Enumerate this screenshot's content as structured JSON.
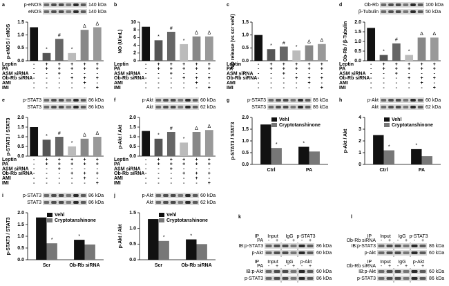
{
  "chart_data": [
    {
      "type": "bar",
      "label": "a",
      "ylabel": "p-eNOS / eNOS",
      "blots": [
        {
          "name": "p-eNOS",
          "kda": "140 kDa"
        },
        {
          "name": "eNOS",
          "kda": "140 kDa"
        }
      ],
      "values": [
        1.3,
        0.3,
        0.85,
        0.3,
        1.2,
        1.3
      ],
      "colors": [
        "#111111",
        "#555555",
        "#666666",
        "#bbbbbb",
        "#888888",
        "#999999"
      ],
      "annotations": [
        null,
        "*",
        "#",
        "*",
        "Δ",
        "Δ"
      ],
      "ylim": [
        0,
        1.5
      ],
      "yticks": [
        {
          "value": 0,
          "label": "0.0"
        },
        {
          "value": 0.5,
          "label": "0.5"
        },
        {
          "value": 1,
          "label": "1.0"
        },
        {
          "value": 1.5,
          "label": "1.5"
        }
      ],
      "treatments": [
        {
          "name": "Leptin",
          "signs": [
            "-",
            "+",
            "+",
            "+",
            "+",
            "+"
          ]
        },
        {
          "name": "PA",
          "signs": [
            "-",
            "+",
            "+",
            "+",
            "+",
            "+"
          ]
        },
        {
          "name": "ASM siRNA",
          "signs": [
            "-",
            "-",
            "+",
            "-",
            "-",
            "-"
          ]
        },
        {
          "name": "Ob-Rb siRNA",
          "signs": [
            "-",
            "-",
            "-",
            "+",
            "+",
            "+"
          ]
        },
        {
          "name": "AMI",
          "signs": [
            "-",
            "-",
            "-",
            "-",
            "+",
            "-"
          ]
        },
        {
          "name": "IMI",
          "signs": [
            "-",
            "-",
            "-",
            "-",
            "-",
            "+"
          ]
        }
      ]
    },
    {
      "type": "bar",
      "label": "b",
      "ylabel": "NO (U/mL)",
      "values": [
        8.8,
        5.3,
        7.5,
        4.3,
        6.3,
        6.3
      ],
      "colors": [
        "#111111",
        "#555555",
        "#666666",
        "#bbbbbb",
        "#888888",
        "#999999"
      ],
      "annotations": [
        null,
        "*",
        "#",
        "*",
        "Δ",
        "Δ"
      ],
      "ylim": [
        0,
        10
      ],
      "yticks": [
        0,
        2,
        4,
        6,
        8,
        10
      ],
      "treatments": [
        {
          "name": "Leptin",
          "signs": [
            "-",
            "+",
            "+",
            "+",
            "+",
            "+"
          ]
        },
        {
          "name": "PA",
          "signs": [
            "-",
            "+",
            "+",
            "+",
            "+",
            "+"
          ]
        },
        {
          "name": "ASM siRNA",
          "signs": [
            "-",
            "-",
            "+",
            "-",
            "-",
            "-"
          ]
        },
        {
          "name": "Ob-Rb siRNA",
          "signs": [
            "-",
            "-",
            "-",
            "+",
            "+",
            "+"
          ]
        },
        {
          "name": "AMI",
          "signs": [
            "-",
            "-",
            "-",
            "-",
            "+",
            "-"
          ]
        },
        {
          "name": "IMI",
          "signs": [
            "-",
            "-",
            "-",
            "-",
            "-",
            "+"
          ]
        }
      ]
    },
    {
      "type": "bar",
      "label": "c",
      "ylabel": "NO release (vs scr vehl)",
      "values": [
        1.0,
        0.45,
        0.55,
        0.4,
        0.6,
        0.65
      ],
      "colors": [
        "#111111",
        "#555555",
        "#666666",
        "#bbbbbb",
        "#888888",
        "#999999"
      ],
      "annotations": [
        null,
        "*",
        "#",
        "*",
        "Δ",
        "Δ"
      ],
      "ylim": [
        0,
        1.5
      ],
      "yticks": [
        {
          "value": 0,
          "label": "0.0"
        },
        {
          "value": 0.5,
          "label": "0.5"
        },
        {
          "value": 1,
          "label": "1.0"
        },
        {
          "value": 1.5,
          "label": "1.5"
        }
      ],
      "treatments": [
        {
          "name": "Leptin",
          "signs": [
            "-",
            "+",
            "+",
            "+",
            "+",
            "+"
          ]
        },
        {
          "name": "PA",
          "signs": [
            "-",
            "+",
            "+",
            "+",
            "+",
            "+"
          ]
        },
        {
          "name": "ASM siRNA",
          "signs": [
            "-",
            "-",
            "+",
            "-",
            "-",
            "-"
          ]
        },
        {
          "name": "Ob-Rb siRNA",
          "signs": [
            "-",
            "-",
            "-",
            "+",
            "+",
            "+"
          ]
        },
        {
          "name": "AMI",
          "signs": [
            "-",
            "-",
            "-",
            "-",
            "+",
            "-"
          ]
        },
        {
          "name": "IMI",
          "signs": [
            "-",
            "-",
            "-",
            "-",
            "-",
            "+"
          ]
        }
      ]
    },
    {
      "type": "bar",
      "label": "d",
      "ylabel": "Ob-Rb / β-Tubulin",
      "blots": [
        {
          "name": "Ob-Rb",
          "kda": "100 kDa"
        },
        {
          "name": "β-Tubulin",
          "kda": "50 kDa"
        }
      ],
      "values": [
        1.7,
        0.3,
        0.9,
        0.3,
        1.2,
        1.2
      ],
      "colors": [
        "#111111",
        "#555555",
        "#666666",
        "#bbbbbb",
        "#888888",
        "#999999"
      ],
      "annotations": [
        null,
        "*",
        "#",
        "*",
        "Δ",
        "Δ"
      ],
      "ylim": [
        0,
        2
      ],
      "yticks": [
        {
          "value": 0,
          "label": "0.0"
        },
        {
          "value": 0.5,
          "label": "0.5"
        },
        {
          "value": 1,
          "label": "1.0"
        },
        {
          "value": 1.5,
          "label": "1.5"
        },
        {
          "value": 2,
          "label": "2.0"
        }
      ],
      "treatments": [
        {
          "name": "Leptin",
          "signs": [
            "-",
            "+",
            "+",
            "+",
            "+",
            "+"
          ]
        },
        {
          "name": "PA",
          "signs": [
            "-",
            "+",
            "+",
            "+",
            "+",
            "+"
          ]
        },
        {
          "name": "ASM siRNA",
          "signs": [
            "-",
            "-",
            "+",
            "-",
            "-",
            "-"
          ]
        },
        {
          "name": "Ob-Rb siRNA",
          "signs": [
            "-",
            "-",
            "-",
            "+",
            "+",
            "+"
          ]
        },
        {
          "name": "AMI",
          "signs": [
            "-",
            "-",
            "-",
            "-",
            "+",
            "-"
          ]
        },
        {
          "name": "IMI",
          "signs": [
            "-",
            "-",
            "-",
            "-",
            "-",
            "+"
          ]
        }
      ]
    },
    {
      "type": "bar",
      "label": "e",
      "ylabel": "p-STAT3 / STAT3",
      "blots": [
        {
          "name": "p-STAT3",
          "kda": "86 kDa"
        },
        {
          "name": "STAT3",
          "kda": "86 kDa"
        }
      ],
      "values": [
        1.5,
        0.85,
        1.0,
        0.5,
        0.9,
        1.0
      ],
      "colors": [
        "#111111",
        "#555555",
        "#666666",
        "#bbbbbb",
        "#888888",
        "#999999"
      ],
      "annotations": [
        null,
        "*",
        "#",
        "*",
        "Δ",
        "Δ"
      ],
      "ylim": [
        0,
        2
      ],
      "yticks": [
        {
          "value": 0,
          "label": "0.0"
        },
        {
          "value": 0.5,
          "label": "0.5"
        },
        {
          "value": 1,
          "label": "1.0"
        },
        {
          "value": 1.5,
          "label": "1.5"
        },
        {
          "value": 2,
          "label": "2.0"
        }
      ],
      "treatments": [
        {
          "name": "Leptin",
          "signs": [
            "-",
            "+",
            "+",
            "+",
            "+",
            "+"
          ]
        },
        {
          "name": "PA",
          "signs": [
            "-",
            "+",
            "+",
            "+",
            "+",
            "+"
          ]
        },
        {
          "name": "ASM siRNA",
          "signs": [
            "-",
            "-",
            "+",
            "-",
            "-",
            "-"
          ]
        },
        {
          "name": "Ob-Rb siRNA",
          "signs": [
            "-",
            "-",
            "-",
            "+",
            "+",
            "+"
          ]
        },
        {
          "name": "AMI",
          "signs": [
            "-",
            "-",
            "-",
            "-",
            "+",
            "-"
          ]
        },
        {
          "name": "IMI",
          "signs": [
            "-",
            "-",
            "-",
            "-",
            "-",
            "+"
          ]
        }
      ]
    },
    {
      "type": "bar",
      "label": "f",
      "ylabel": "p-Akt / Akt",
      "blots": [
        {
          "name": "p-Akt",
          "kda": "60 kDa"
        },
        {
          "name": "Akt",
          "kda": "62 kDa"
        }
      ],
      "values": [
        1.3,
        0.9,
        1.25,
        0.7,
        1.25,
        1.35
      ],
      "colors": [
        "#111111",
        "#555555",
        "#666666",
        "#bbbbbb",
        "#888888",
        "#999999"
      ],
      "annotations": [
        null,
        "*",
        "#",
        "*",
        "Δ",
        "Δ"
      ],
      "ylim": [
        0,
        2
      ],
      "yticks": [
        {
          "value": 0,
          "label": "0.0"
        },
        {
          "value": 0.5,
          "label": "0.5"
        },
        {
          "value": 1,
          "label": "1.0"
        },
        {
          "value": 1.5,
          "label": "1.5"
        },
        {
          "value": 2,
          "label": "2.0"
        }
      ],
      "treatments": [
        {
          "name": "Leptin",
          "signs": [
            "-",
            "+",
            "+",
            "+",
            "+",
            "+"
          ]
        },
        {
          "name": "PA",
          "signs": [
            "-",
            "+",
            "+",
            "+",
            "+",
            "+"
          ]
        },
        {
          "name": "ASM siRNA",
          "signs": [
            "-",
            "-",
            "+",
            "-",
            "-",
            "-"
          ]
        },
        {
          "name": "Ob-Rb siRNA",
          "signs": [
            "-",
            "-",
            "-",
            "+",
            "+",
            "+"
          ]
        },
        {
          "name": "AMI",
          "signs": [
            "-",
            "-",
            "-",
            "-",
            "+",
            "-"
          ]
        },
        {
          "name": "IMI",
          "signs": [
            "-",
            "-",
            "-",
            "-",
            "-",
            "+"
          ]
        }
      ]
    },
    {
      "type": "bar",
      "label": "g",
      "ylabel": "p-STAT3 / STAT3",
      "blots": [
        {
          "name": "p-STAT3",
          "kda": "86 kDa"
        },
        {
          "name": "STAT3",
          "kda": "86 kDa"
        }
      ],
      "categories": [
        "Ctrl",
        "PA"
      ],
      "series": [
        {
          "name": "Vehl",
          "color": "#111111",
          "values": [
            1.7,
            0.75
          ],
          "annotations": [
            null,
            "*"
          ]
        },
        {
          "name": "Cryptotanshinone",
          "color": "#777777",
          "values": [
            0.7,
            0.55
          ],
          "annotations": [
            "*",
            null
          ]
        }
      ],
      "ylim": [
        0,
        2
      ],
      "yticks": [
        {
          "value": 0,
          "label": "0.0"
        },
        {
          "value": 0.5,
          "label": "0.5"
        },
        {
          "value": 1,
          "label": "1.0"
        },
        {
          "value": 1.5,
          "label": "1.5"
        },
        {
          "value": 2,
          "label": "2.0"
        }
      ]
    },
    {
      "type": "bar",
      "label": "h",
      "ylabel": "p-Akt / Akt",
      "blots": [
        {
          "name": "p-Akt",
          "kda": "60 kDa"
        },
        {
          "name": "Akt",
          "kda": "62 kDa"
        }
      ],
      "categories": [
        "Ctrl",
        "PA"
      ],
      "series": [
        {
          "name": "Vehl",
          "color": "#111111",
          "values": [
            2.5,
            1.3
          ],
          "annotations": [
            null,
            "*"
          ]
        },
        {
          "name": "Cryptotanshinone",
          "color": "#777777",
          "values": [
            1.2,
            0.7
          ],
          "annotations": [
            "*",
            null
          ]
        }
      ],
      "ylim": [
        0,
        4
      ],
      "yticks": [
        0,
        1,
        2,
        3,
        4
      ]
    },
    {
      "type": "bar",
      "label": "i",
      "ylabel": "p-STAT3 / STAT3",
      "blots": [
        {
          "name": "p-STAT3",
          "kda": "86 kDa"
        },
        {
          "name": "STAT3",
          "kda": "86 kDa"
        }
      ],
      "categories": [
        "Scr",
        "Ob-Rb siRNA"
      ],
      "series": [
        {
          "name": "Vehl",
          "color": "#111111",
          "values": [
            1.8,
            0.85
          ],
          "annotations": [
            null,
            "*"
          ]
        },
        {
          "name": "Cryptotanshinone",
          "color": "#777777",
          "values": [
            0.7,
            0.65
          ],
          "annotations": [
            "*",
            null
          ]
        }
      ],
      "ylim": [
        0,
        2
      ],
      "yticks": [
        {
          "value": 0,
          "label": "0.0"
        },
        {
          "value": 0.5,
          "label": "0.5"
        },
        {
          "value": 1,
          "label": "1.0"
        },
        {
          "value": 1.5,
          "label": "1.5"
        },
        {
          "value": 2,
          "label": "2.0"
        }
      ]
    },
    {
      "type": "bar",
      "label": "j",
      "ylabel": "p-Akt / Akt",
      "blots": [
        {
          "name": "p-Akt",
          "kda": "60 kDa"
        },
        {
          "name": "Akt",
          "kda": "62 kDa"
        }
      ],
      "categories": [
        "Scr",
        "Ob-Rb siRNA"
      ],
      "series": [
        {
          "name": "Vehl",
          "color": "#111111",
          "values": [
            1.3,
            0.65
          ],
          "annotations": [
            null,
            "*"
          ]
        },
        {
          "name": "Cryptotanshinone",
          "color": "#777777",
          "values": [
            0.6,
            0.5
          ],
          "annotations": [
            "*",
            null
          ]
        }
      ],
      "ylim": [
        0,
        1.5
      ],
      "yticks": [
        {
          "value": 0,
          "label": "0.0"
        },
        {
          "value": 0.5,
          "label": "0.5"
        },
        {
          "value": 1,
          "label": "1.0"
        },
        {
          "value": 1.5,
          "label": "1.5"
        }
      ]
    }
  ],
  "ip_panels": [
    {
      "label": "k",
      "blocks": [
        {
          "ip": "IP",
          "condition": "PA",
          "signs": [
            "-",
            "+",
            "-",
            "+",
            "-",
            "+"
          ],
          "groups": [
            "Input",
            "IgG",
            "p-STAT3"
          ],
          "blots": [
            {
              "name": "IB:p-STAT3",
              "kda": "86 kDa"
            },
            {
              "name": "p-Akt",
              "kda": "60 kDa"
            }
          ]
        },
        {
          "ip": "IP",
          "condition": "PA",
          "signs": [
            "-",
            "+",
            "-",
            "+",
            "-",
            "+"
          ],
          "groups": [
            "Input",
            "IgG",
            "p-Akt"
          ],
          "blots": [
            {
              "name": "IB:p-Akt",
              "kda": "60 kDa"
            },
            {
              "name": "p-STAT3",
              "kda": "86 kDa"
            }
          ]
        }
      ]
    },
    {
      "label": "l",
      "blocks": [
        {
          "ip": "IP",
          "condition": "Ob-Rb siRNA",
          "signs": [
            "-",
            "+",
            "-",
            "+",
            "-",
            "+"
          ],
          "groups": [
            "Input",
            "IgG",
            "p-STAT3"
          ],
          "blots": [
            {
              "name": "IB:p-STAT3",
              "kda": "86 kDa"
            },
            {
              "name": "p-Akt",
              "kda": "60 kDa"
            }
          ]
        },
        {
          "ip": "IP",
          "condition": "Ob-Rb siRNA",
          "signs": [
            "-",
            "+",
            "-",
            "+",
            "-",
            "+"
          ],
          "groups": [
            "Input",
            "IgG",
            "p-Akt"
          ],
          "blots": [
            {
              "name": "IB:p-Akt",
              "kda": "60 kDa"
            },
            {
              "name": "p-STAT3",
              "kda": "86 kDa"
            }
          ]
        }
      ]
    }
  ]
}
